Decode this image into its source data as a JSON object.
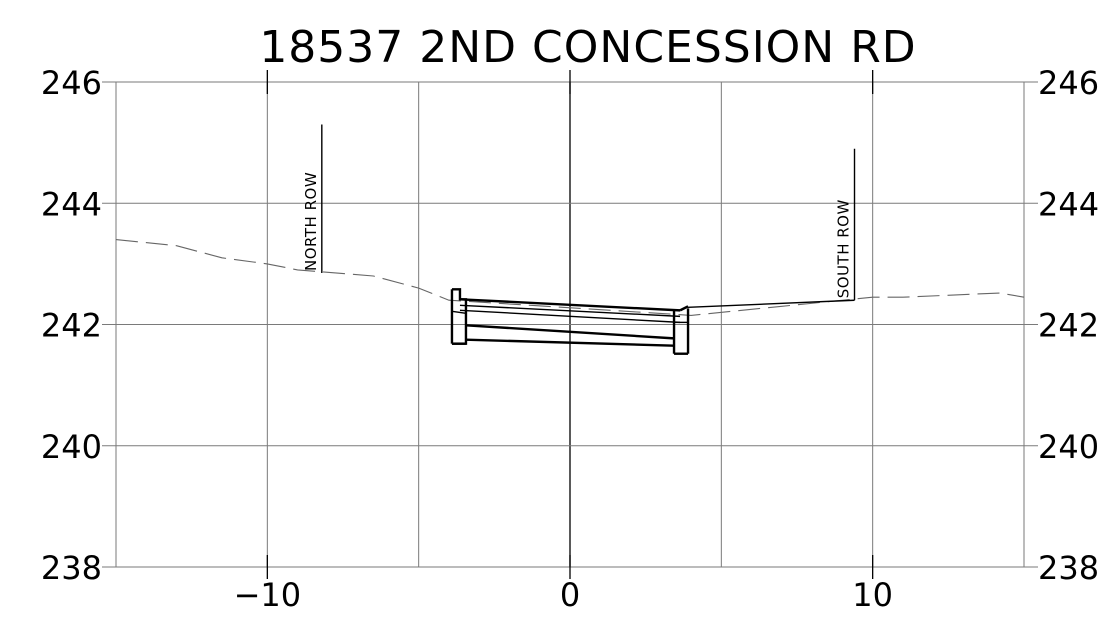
{
  "chart_data": {
    "type": "line",
    "title": "18537 2ND CONCESSION RD",
    "xlim": [
      -15,
      15
    ],
    "ylim": [
      238,
      246
    ],
    "x_ticks": [
      -10,
      0,
      10
    ],
    "x_tick_labels": [
      "−10",
      "0",
      "10"
    ],
    "x_gridlines": [
      -15,
      -10,
      -5,
      0,
      5,
      10,
      15
    ],
    "y_ticks": [
      238,
      240,
      242,
      244,
      246
    ],
    "y_tick_labels": [
      "238",
      "240",
      "242",
      "244",
      "246"
    ],
    "grid": true,
    "series": [
      {
        "style": "dashed",
        "x": [
          -15,
          -13,
          -11.5,
          -10,
          -9,
          -6.5,
          -5,
          -4,
          4,
          7,
          10,
          11,
          14.2,
          15
        ],
        "y": [
          243.4,
          243.3,
          243.1,
          243.0,
          242.9,
          242.8,
          242.6,
          242.4,
          242.15,
          242.3,
          242.45,
          242.45,
          242.52,
          242.45
        ]
      }
    ],
    "culvert": {
      "x_start": -3.9,
      "x_end": 3.9,
      "top_elevation": [
        242.35,
        242.2
      ],
      "invert_elevation": [
        241.75,
        241.65
      ]
    },
    "road_profile": {
      "x": [
        3.9,
        9.4
      ],
      "y": [
        242.25,
        242.4
      ]
    },
    "row_markers": [
      {
        "label": "NORTH ROW",
        "x": -8.2,
        "y_bottom": 242.85,
        "y_top": 245.3
      },
      {
        "label": "SOUTH ROW",
        "x": 9.4,
        "y_bottom": 242.4,
        "y_top": 244.9
      }
    ]
  }
}
